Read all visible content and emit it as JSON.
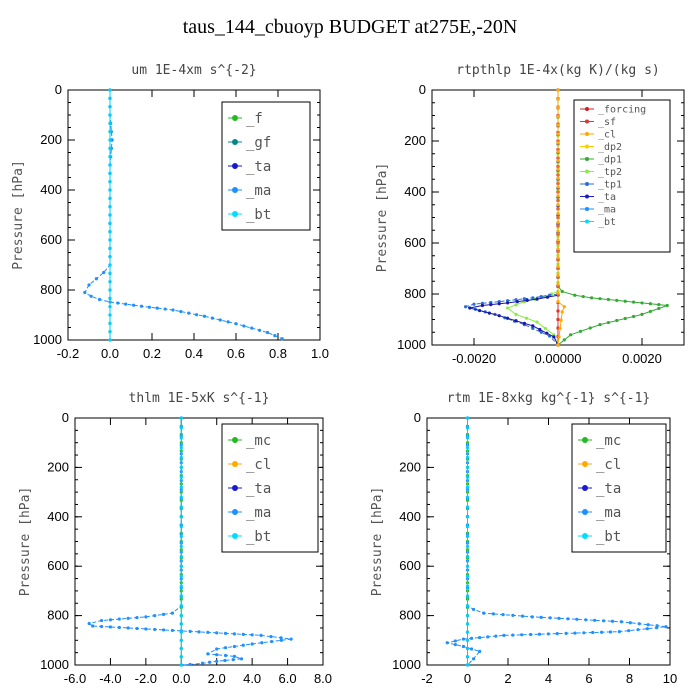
{
  "page_title": "taus_144_cbuoyp  BUDGET at275E,-20N",
  "chart_data": [
    {
      "type": "line",
      "title": "um  1E-4xm s^{-2}",
      "ylabel": "Pressure [hPa]",
      "xlim": [
        -0.2,
        1.0
      ],
      "ylim": [
        1000,
        0
      ],
      "ytick_step": 200,
      "xticks": [
        -0.2,
        0.0,
        0.2,
        0.4,
        0.6,
        0.8,
        1.0
      ],
      "xtick_labels": [
        "-0.2",
        "0.0",
        "0.2",
        "0.4",
        "0.6",
        "0.8",
        "1.0"
      ],
      "legend": {
        "position": "top-right",
        "entries": [
          "_f",
          "_gf",
          "_ta",
          "_ma",
          "_bt"
        ]
      },
      "series": [
        {
          "name": "_f",
          "color": "#22bb22",
          "x": [
            0.0,
            0.0,
            0.0,
            0.0,
            0.0,
            0.0,
            0.0,
            0.0,
            0.0,
            0.0,
            0.0
          ],
          "y": [
            0,
            100,
            200,
            300,
            400,
            500,
            600,
            700,
            800,
            900,
            1000
          ]
        },
        {
          "name": "_ma",
          "color": "#1e90ff",
          "x": [
            0.0,
            0.0,
            0.01,
            0.0,
            0.0,
            0.0,
            0.0,
            0.0,
            -0.03,
            -0.1,
            -0.12,
            -0.09,
            -0.05,
            0.0,
            0.15,
            0.3,
            0.45,
            0.6,
            0.75,
            0.82
          ],
          "y": [
            0,
            100,
            200,
            300,
            400,
            500,
            600,
            700,
            730,
            780,
            810,
            825,
            838,
            848,
            865,
            880,
            905,
            935,
            970,
            995
          ]
        },
        {
          "name": "_bt",
          "color": "#00ccff",
          "x": [
            0.0,
            0.0,
            0.0,
            0.0,
            0.0,
            0.0,
            0.0
          ],
          "y": [
            0,
            200,
            400,
            600,
            800,
            900,
            1000
          ]
        }
      ]
    },
    {
      "type": "line",
      "title": "rtpthlp  1E-4x(kg K)/(kg s)",
      "ylabel": "Pressure [hPa]",
      "xlim": [
        -0.003,
        0.003
      ],
      "ylim": [
        1000,
        0
      ],
      "ytick_step": 200,
      "xticks": [
        -0.002,
        0.0,
        0.002
      ],
      "xtick_labels": [
        "-0.0020",
        "0.00000",
        "0.0020"
      ],
      "legend": {
        "position": "top-right",
        "entries": [
          "_forcing",
          "_sf",
          "_cl",
          "_dp2",
          "_dp1",
          "_tp2",
          "_tp1",
          "_ta",
          "_ma",
          "_bt"
        ]
      },
      "series": [
        {
          "name": "_forcing",
          "color": "#cc2222",
          "x": [
            0,
            0,
            0,
            0,
            0,
            0,
            0,
            0,
            0,
            0,
            0
          ],
          "y": [
            0,
            100,
            200,
            300,
            400,
            500,
            600,
            700,
            800,
            900,
            1000
          ]
        },
        {
          "name": "_dp1",
          "color": "#33aa33",
          "x": [
            0.0,
            0.0,
            0.0001,
            0.0004,
            0.0008,
            0.0014,
            0.002,
            0.0026,
            0.002,
            0.001,
            0.0003,
            0.0
          ],
          "y": [
            0,
            770,
            790,
            805,
            815,
            825,
            835,
            845,
            880,
            920,
            960,
            1000
          ]
        },
        {
          "name": "_tp2",
          "color": "#88ee44",
          "x": [
            0.0,
            0.0,
            -0.0003,
            -0.0008,
            -0.0012,
            -0.001,
            -0.0005,
            -0.0001,
            0.0
          ],
          "y": [
            0,
            790,
            810,
            830,
            855,
            880,
            910,
            960,
            1000
          ]
        },
        {
          "name": "_ma",
          "color": "#2a6fd6",
          "x": [
            0.0,
            0.0,
            -0.0006,
            -0.0014,
            -0.002,
            -0.0022,
            -0.0015,
            -0.0008,
            -0.0002,
            0.0
          ],
          "y": [
            0,
            800,
            815,
            830,
            840,
            850,
            880,
            920,
            965,
            1000
          ]
        },
        {
          "name": "_ta",
          "color": "#1a1aaa",
          "x": [
            0.0,
            0.0,
            -0.0005,
            -0.0012,
            -0.0018,
            -0.0021,
            -0.0014,
            -0.0006,
            -0.0001,
            0.0
          ],
          "y": [
            0,
            805,
            820,
            835,
            845,
            855,
            885,
            925,
            968,
            1000
          ]
        },
        {
          "name": "_sf",
          "color": "#dd3333",
          "x": [
            0,
            0,
            0,
            0,
            0,
            0,
            0,
            0,
            0,
            0,
            0
          ],
          "y": [
            0,
            100,
            200,
            300,
            400,
            500,
            600,
            700,
            800,
            900,
            1000
          ]
        },
        {
          "name": "_cl",
          "color": "#ffaa00",
          "x": [
            0.0,
            0.0,
            0.00015,
            0.0001,
            0.0
          ],
          "y": [
            0,
            830,
            850,
            870,
            1000
          ]
        }
      ]
    },
    {
      "type": "line",
      "title": "thlm  1E-5xK s^{-1}",
      "ylabel": "Pressure [hPa]",
      "xlim": [
        -6.0,
        8.0
      ],
      "ylim": [
        1000,
        0
      ],
      "ytick_step": 200,
      "xticks": [
        -6,
        -4,
        -2,
        0,
        2,
        4,
        6,
        8
      ],
      "xtick_labels": [
        "-6.0",
        "-4.0",
        "-2.0",
        "0.0",
        "2.0",
        "4.0",
        "6.0",
        "8.0"
      ],
      "legend": {
        "position": "top-right",
        "entries": [
          "_mc",
          "_cl",
          "_ta",
          "_ma",
          "_bt"
        ]
      },
      "series": [
        {
          "name": "_mc",
          "color": "#22bb22",
          "x": [
            0,
            0,
            0,
            0,
            0,
            0,
            0,
            0,
            0,
            0,
            0
          ],
          "y": [
            0,
            100,
            200,
            300,
            400,
            500,
            600,
            700,
            800,
            900,
            1000
          ]
        },
        {
          "name": "_ma",
          "color": "#1e90ff",
          "x": [
            0.0,
            0.0,
            -0.5,
            -2.0,
            -4.5,
            -5.2,
            -5.0,
            -0.5,
            4.5,
            6.2,
            4.0,
            2.0,
            1.5,
            3.0,
            3.4,
            2.0,
            1.2,
            0.5,
            0.0
          ],
          "y": [
            0,
            760,
            790,
            805,
            820,
            832,
            842,
            860,
            880,
            895,
            915,
            935,
            955,
            965,
            975,
            985,
            993,
            998,
            1000
          ]
        },
        {
          "name": "_bt",
          "color": "#00ccff",
          "x": [
            0,
            0,
            0,
            0,
            0,
            0,
            0
          ],
          "y": [
            0,
            200,
            400,
            600,
            800,
            900,
            1000
          ]
        }
      ]
    },
    {
      "type": "line",
      "title": "rtm  1E-8xkg kg^{-1} s^{-1}",
      "ylabel": "Pressure [hPa]",
      "xlim": [
        -2,
        10
      ],
      "ylim": [
        1000,
        0
      ],
      "ytick_step": 200,
      "xticks": [
        -2,
        0,
        2,
        4,
        6,
        8,
        10
      ],
      "xtick_labels": [
        "-2",
        "0",
        "2",
        "4",
        "6",
        "8",
        "10"
      ],
      "legend": {
        "position": "top-right",
        "entries": [
          "_mc",
          "_cl",
          "_ta",
          "_ma",
          "_bt"
        ]
      },
      "series": [
        {
          "name": "_mc",
          "color": "#22bb22",
          "x": [
            0,
            0,
            0,
            0,
            0,
            0,
            0,
            0,
            0,
            0,
            0
          ],
          "y": [
            0,
            100,
            200,
            300,
            400,
            500,
            600,
            700,
            800,
            900,
            1000
          ]
        },
        {
          "name": "_ma",
          "color": "#1e90ff",
          "x": [
            0.0,
            0.0,
            0.3,
            0.8,
            3.2,
            7.6,
            9.8,
            7.5,
            1.8,
            -0.2,
            -1.0,
            -0.2,
            0.6,
            0.3,
            0.0
          ],
          "y": [
            0,
            760,
            775,
            790,
            805,
            825,
            845,
            865,
            880,
            895,
            910,
            925,
            945,
            975,
            1000
          ]
        },
        {
          "name": "_bt",
          "color": "#00ccff",
          "x": [
            0,
            0,
            0,
            0,
            0,
            0,
            0
          ],
          "y": [
            0,
            200,
            400,
            600,
            800,
            900,
            1000
          ]
        }
      ]
    }
  ]
}
